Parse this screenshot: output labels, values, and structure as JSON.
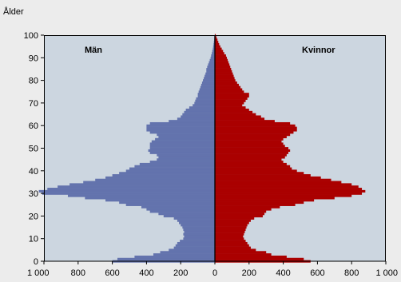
{
  "chart_data": {
    "type": "bar",
    "orientation": "horizontal",
    "subtype": "population-pyramid",
    "y_axis_title": "Ålder",
    "x_tick_labels": [
      "1 000",
      "800",
      "600",
      "400",
      "200",
      "0",
      "200",
      "400",
      "600",
      "800",
      "1 000"
    ],
    "y_tick_labels": [
      "0",
      "10",
      "20",
      "30",
      "40",
      "50",
      "60",
      "70",
      "80",
      "90",
      "100"
    ],
    "xlim": [
      -1000,
      1000
    ],
    "ylim": [
      0,
      100
    ],
    "background_color": "#ccd6e0",
    "grid": false,
    "ages": [
      0,
      1,
      2,
      3,
      4,
      5,
      6,
      7,
      8,
      9,
      10,
      11,
      12,
      13,
      14,
      15,
      16,
      17,
      18,
      19,
      20,
      21,
      22,
      23,
      24,
      25,
      26,
      27,
      28,
      29,
      30,
      31,
      32,
      33,
      34,
      35,
      36,
      37,
      38,
      39,
      40,
      41,
      42,
      43,
      44,
      45,
      46,
      47,
      48,
      49,
      50,
      51,
      52,
      53,
      54,
      55,
      56,
      57,
      58,
      59,
      60,
      61,
      62,
      63,
      64,
      65,
      66,
      67,
      68,
      69,
      70,
      71,
      72,
      73,
      74,
      75,
      76,
      77,
      78,
      79,
      80,
      81,
      82,
      83,
      84,
      85,
      86,
      87,
      88,
      89,
      90,
      91,
      92,
      93,
      94,
      95,
      96,
      97,
      98,
      99,
      100
    ],
    "series": [
      {
        "name": "Män",
        "color": "#6373ad",
        "values": [
          600,
          570,
          470,
          360,
          320,
          270,
          240,
          230,
          220,
          205,
          185,
          180,
          185,
          180,
          185,
          190,
          200,
          210,
          220,
          240,
          300,
          330,
          380,
          400,
          430,
          520,
          560,
          640,
          760,
          860,
          1010,
          1030,
          980,
          920,
          850,
          770,
          700,
          640,
          600,
          560,
          520,
          500,
          470,
          440,
          380,
          340,
          330,
          340,
          380,
          390,
          380,
          380,
          380,
          370,
          350,
          330,
          340,
          380,
          400,
          400,
          400,
          380,
          270,
          220,
          200,
          190,
          180,
          170,
          150,
          130,
          120,
          115,
          110,
          100,
          100,
          95,
          90,
          85,
          80,
          75,
          70,
          65,
          60,
          55,
          50,
          50,
          45,
          40,
          35,
          30,
          25,
          22,
          18,
          15,
          12,
          10,
          8,
          6,
          4,
          3,
          1
        ]
      },
      {
        "name": "Kvinnor",
        "color": "#aa0000",
        "values": [
          560,
          520,
          420,
          330,
          300,
          240,
          210,
          200,
          190,
          180,
          170,
          165,
          170,
          175,
          180,
          185,
          190,
          200,
          210,
          230,
          280,
          290,
          300,
          330,
          380,
          470,
          520,
          580,
          700,
          800,
          860,
          880,
          860,
          840,
          800,
          740,
          680,
          620,
          560,
          520,
          480,
          450,
          440,
          420,
          400,
          390,
          410,
          420,
          430,
          440,
          430,
          410,
          400,
          390,
          400,
          420,
          440,
          460,
          480,
          480,
          470,
          440,
          350,
          290,
          270,
          240,
          220,
          200,
          180,
          160,
          170,
          180,
          190,
          200,
          200,
          170,
          160,
          150,
          140,
          130,
          120,
          115,
          110,
          105,
          100,
          95,
          90,
          85,
          80,
          75,
          70,
          65,
          55,
          48,
          40,
          32,
          25,
          20,
          15,
          10,
          5
        ]
      }
    ]
  }
}
